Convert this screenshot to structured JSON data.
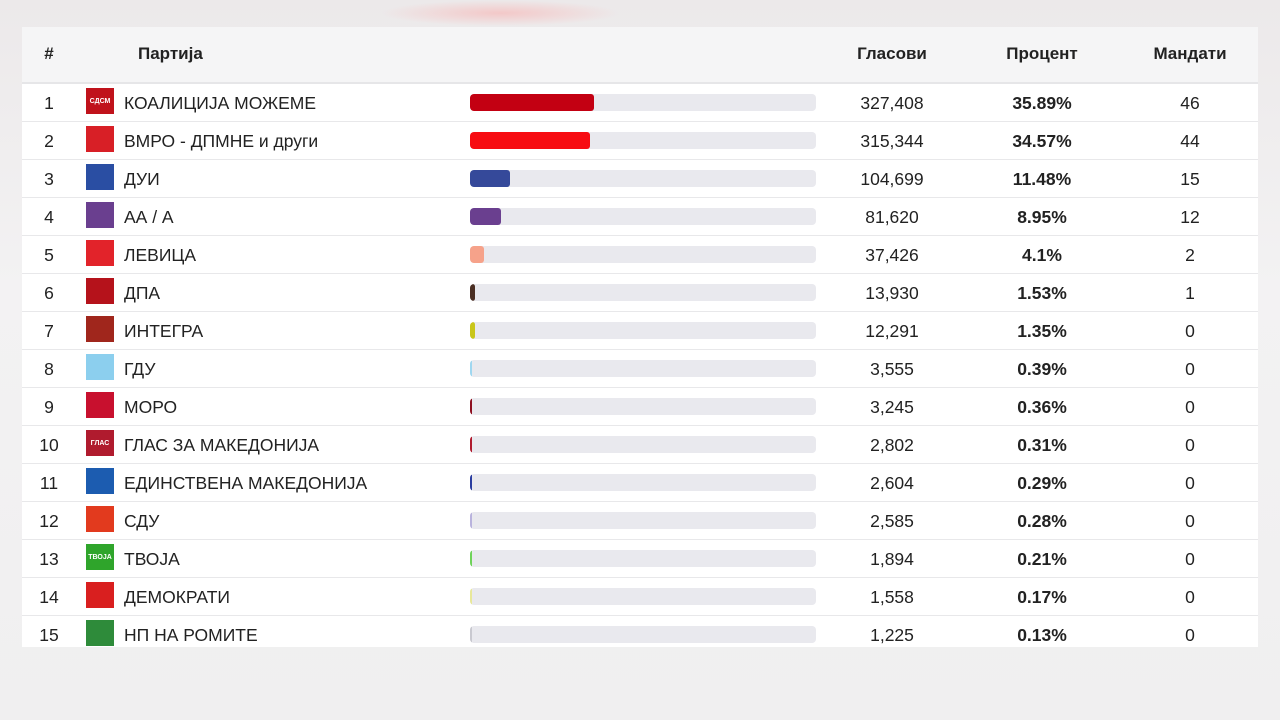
{
  "header": {
    "num": "#",
    "party": "Партија",
    "votes": "Гласови",
    "percent": "Процент",
    "seats": "Мандати"
  },
  "rows": [
    {
      "num": "1",
      "name": "КОАЛИЦИЈА МОЖЕМЕ",
      "votes": "327,408",
      "percent": "35.89%",
      "percent_value": 35.89,
      "seats": "46",
      "color": "#c30012",
      "logo": "СДСМ",
      "logo_color": "#c0121b"
    },
    {
      "num": "2",
      "name": "ВМРО - ДПМНЕ и други",
      "votes": "315,344",
      "percent": "34.57%",
      "percent_value": 34.57,
      "seats": "44",
      "color": "#f70c12",
      "logo": "",
      "logo_color": "#d81f26"
    },
    {
      "num": "3",
      "name": "ДУИ",
      "votes": "104,699",
      "percent": "11.48%",
      "percent_value": 11.48,
      "seats": "15",
      "color": "#35499a",
      "logo": "",
      "logo_color": "#2a4ea3"
    },
    {
      "num": "4",
      "name": "АА / А",
      "votes": "81,620",
      "percent": "8.95%",
      "percent_value": 8.95,
      "seats": "12",
      "color": "#6a3f8f",
      "logo": "",
      "logo_color": "#6a3f8f"
    },
    {
      "num": "5",
      "name": "ЛЕВИЦА",
      "votes": "37,426",
      "percent": "4.1%",
      "percent_value": 4.1,
      "seats": "2",
      "color": "#f6a28a",
      "logo": "",
      "logo_color": "#e2232a"
    },
    {
      "num": "6",
      "name": "ДПА",
      "votes": "13,930",
      "percent": "1.53%",
      "percent_value": 1.53,
      "seats": "1",
      "color": "#4a2e23",
      "logo": "",
      "logo_color": "#b5121b"
    },
    {
      "num": "7",
      "name": "ИНТЕГРА",
      "votes": "12,291",
      "percent": "1.35%",
      "percent_value": 1.35,
      "seats": "0",
      "color": "#c9c61a",
      "logo": "",
      "logo_color": "#a0261c"
    },
    {
      "num": "8",
      "name": "ГДУ",
      "votes": "3,555",
      "percent": "0.39%",
      "percent_value": 0.39,
      "seats": "0",
      "color": "#9fd7f0",
      "logo": "",
      "logo_color": "#8ccfee"
    },
    {
      "num": "9",
      "name": "МОРО",
      "votes": "3,245",
      "percent": "0.36%",
      "percent_value": 0.36,
      "seats": "0",
      "color": "#8e1020",
      "logo": "",
      "logo_color": "#c8102e"
    },
    {
      "num": "10",
      "name": "ГЛАС ЗА МАКЕДОНИЈА",
      "votes": "2,802",
      "percent": "0.31%",
      "percent_value": 0.31,
      "seats": "0",
      "color": "#b01b2e",
      "logo": "ГЛАС",
      "logo_color": "#b01b2e"
    },
    {
      "num": "11",
      "name": "ЕДИНСТВЕНА МАКЕДОНИЈА",
      "votes": "2,604",
      "percent": "0.29%",
      "percent_value": 0.29,
      "seats": "0",
      "color": "#2b3ea0",
      "logo": "",
      "logo_color": "#1c5cb0"
    },
    {
      "num": "12",
      "name": "СДУ",
      "votes": "2,585",
      "percent": "0.28%",
      "percent_value": 0.28,
      "seats": "0",
      "color": "#b9b3dd",
      "logo": "",
      "logo_color": "#e23a1e"
    },
    {
      "num": "13",
      "name": "ТВОЈА",
      "votes": "1,894",
      "percent": "0.21%",
      "percent_value": 0.21,
      "seats": "0",
      "color": "#6fd35a",
      "logo": "ТВОЈА",
      "logo_color": "#2fa52b"
    },
    {
      "num": "14",
      "name": "ДЕМОКРАТИ",
      "votes": "1,558",
      "percent": "0.17%",
      "percent_value": 0.17,
      "seats": "0",
      "color": "#e8e89a",
      "logo": "",
      "logo_color": "#d91f1f"
    },
    {
      "num": "15",
      "name": "НП НА РОМИТЕ",
      "votes": "1,225",
      "percent": "0.13%",
      "percent_value": 0.13,
      "seats": "0",
      "color": "#c9c9d0",
      "logo": "",
      "logo_color": "#2e8b3a"
    }
  ]
}
